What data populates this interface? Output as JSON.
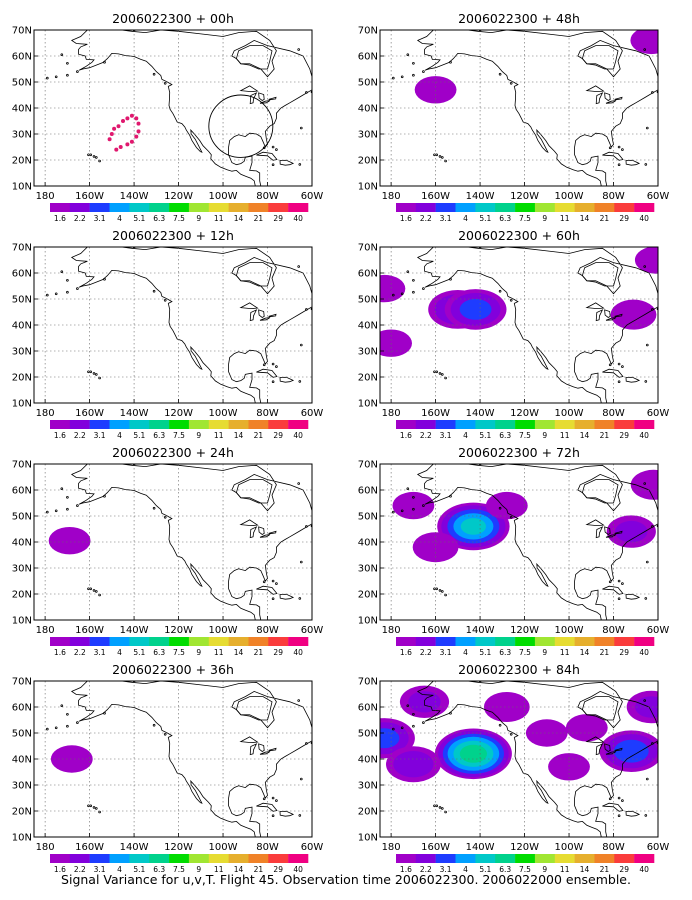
{
  "figure": {
    "caption": "Signal Variance for u,v,T. Flight 45. Observation time 2006022300. 2006022000 ensemble."
  },
  "axes": {
    "x_ticks": [
      "180",
      "160W",
      "140W",
      "120W",
      "100W",
      "80W",
      "60W"
    ],
    "y_ticks": [
      "70N",
      "60N",
      "50N",
      "40N",
      "30N",
      "20N",
      "10N"
    ],
    "x_range_deg": [
      -185,
      -60
    ],
    "y_range_deg": [
      10,
      70
    ],
    "grid": "dotted"
  },
  "colorbar": {
    "labels": [
      "1.6",
      "2.2",
      "3.1",
      "4",
      "5.1",
      "6.3",
      "7.5",
      "9",
      "11",
      "14",
      "21",
      "29",
      "40"
    ],
    "colors": [
      "#a000c8",
      "#8200dc",
      "#1e3cff",
      "#00a0ff",
      "#00c8c8",
      "#00d28c",
      "#00dc00",
      "#a0e632",
      "#e6dc32",
      "#e6af2d",
      "#f08228",
      "#fa3c3c",
      "#f00082"
    ]
  },
  "chart_data": [
    {
      "type": "heatmap",
      "title": "2006022300 + 00h",
      "lead_hours": 0,
      "xlabel": "",
      "ylabel": "",
      "features": {
        "observation_track": [
          [
            -151,
            28
          ],
          [
            -150,
            30
          ],
          [
            -149,
            32
          ],
          [
            -147,
            33
          ],
          [
            -145,
            35
          ],
          [
            -143,
            36
          ],
          [
            -141,
            37
          ],
          [
            -139,
            36
          ],
          [
            -138,
            34
          ],
          [
            -138,
            31
          ],
          [
            -139,
            29
          ],
          [
            -141,
            27
          ],
          [
            -143,
            26
          ],
          [
            -146,
            25
          ],
          [
            -148,
            24
          ]
        ],
        "circle": {
          "center": [
            -92,
            33
          ],
          "radius_deg": 12
        }
      },
      "blobs": []
    },
    {
      "type": "heatmap",
      "title": "2006022300 + 12h",
      "lead_hours": 12,
      "xlabel": "",
      "ylabel": "",
      "blobs": []
    },
    {
      "type": "heatmap",
      "title": "2006022300 + 24h",
      "lead_hours": 24,
      "xlabel": "",
      "ylabel": "",
      "blobs": [
        {
          "lon": -169,
          "lat": 40.5,
          "value": 1.8
        }
      ]
    },
    {
      "type": "heatmap",
      "title": "2006022300 + 36h",
      "lead_hours": 36,
      "xlabel": "",
      "ylabel": "",
      "blobs": [
        {
          "lon": -168,
          "lat": 40,
          "value": 1.8
        }
      ]
    },
    {
      "type": "heatmap",
      "title": "2006022300 + 48h",
      "lead_hours": 48,
      "xlabel": "",
      "ylabel": "",
      "blobs": [
        {
          "lon": -160,
          "lat": 47,
          "value": 1.8
        },
        {
          "lon": -63,
          "lat": 66,
          "value": 1.8
        }
      ]
    },
    {
      "type": "heatmap",
      "title": "2006022300 + 60h",
      "lead_hours": 60,
      "xlabel": "",
      "ylabel": "",
      "blobs": [
        {
          "lon": -150,
          "lat": 46,
          "value": 3.0
        },
        {
          "lon": -142,
          "lat": 46,
          "value": 3.3
        },
        {
          "lon": -183,
          "lat": 54,
          "value": 1.8
        },
        {
          "lon": -180,
          "lat": 33,
          "value": 1.8
        },
        {
          "lon": -71,
          "lat": 44,
          "value": 2.0
        },
        {
          "lon": -61,
          "lat": 65,
          "value": 1.8
        }
      ]
    },
    {
      "type": "heatmap",
      "title": "2006022300 + 72h",
      "lead_hours": 72,
      "xlabel": "",
      "ylabel": "",
      "blobs": [
        {
          "lon": -143,
          "lat": 46,
          "value": 5.2
        },
        {
          "lon": -170,
          "lat": 54,
          "value": 1.8
        },
        {
          "lon": -160,
          "lat": 38,
          "value": 2.0
        },
        {
          "lon": -128,
          "lat": 54,
          "value": 1.8
        },
        {
          "lon": -72,
          "lat": 44,
          "value": 2.2
        },
        {
          "lon": -62,
          "lat": 62,
          "value": 2.0
        }
      ]
    },
    {
      "type": "heatmap",
      "title": "2006022300 + 84h",
      "lead_hours": 84,
      "xlabel": "",
      "ylabel": "",
      "blobs": [
        {
          "lon": -143,
          "lat": 42,
          "value": 6.8
        },
        {
          "lon": -183,
          "lat": 48,
          "value": 3.2
        },
        {
          "lon": -170,
          "lat": 38,
          "value": 2.6
        },
        {
          "lon": -165,
          "lat": 62,
          "value": 2.2
        },
        {
          "lon": -128,
          "lat": 60,
          "value": 2.0
        },
        {
          "lon": -110,
          "lat": 50,
          "value": 1.8
        },
        {
          "lon": -92,
          "lat": 52,
          "value": 1.8
        },
        {
          "lon": -72,
          "lat": 43,
          "value": 3.5
        },
        {
          "lon": -63,
          "lat": 60,
          "value": 2.2
        },
        {
          "lon": -100,
          "lat": 37,
          "value": 1.8
        }
      ]
    }
  ]
}
